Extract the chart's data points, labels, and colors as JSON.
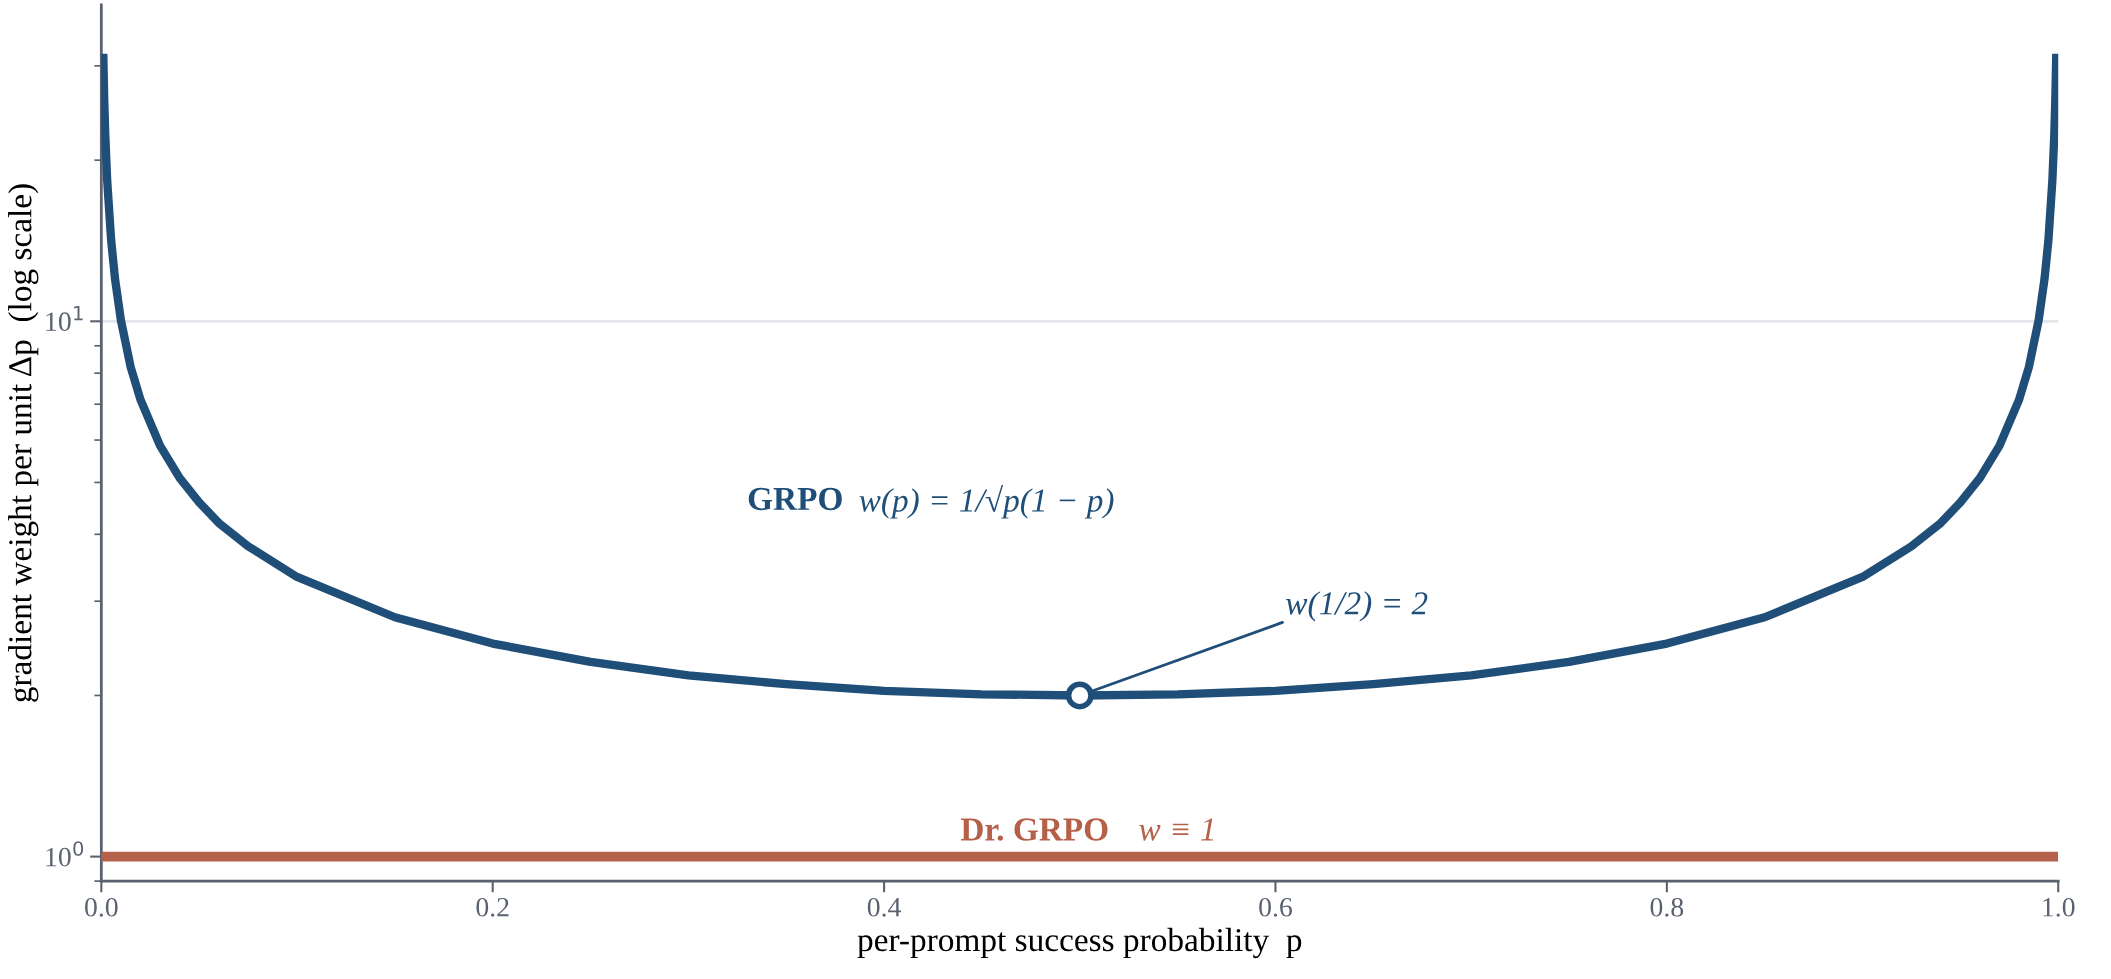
{
  "chart_data": {
    "type": "line",
    "xlabel": "per-prompt success probability  p",
    "ylabel": "gradient weight per unit Δp  (log scale)",
    "log": "y",
    "xlim": [
      0,
      1
    ],
    "ylim": [
      0.9,
      39
    ],
    "xticks": [
      {
        "value": 0,
        "label": "0.0"
      },
      0.2,
      0.4,
      0.6,
      0.8,
      {
        "value": 1,
        "label": "1.0"
      }
    ],
    "yticks": [
      {
        "value": 1,
        "label": "10$^{0}$"
      },
      {
        "value": 10,
        "label": "10$^{1}$"
      }
    ],
    "grid": "y",
    "legend": false,
    "line_style": "solid",
    "series": [
      {
        "name": "GRPO",
        "color": "#1f4e79",
        "x": [
          0.001,
          0.0015,
          0.002,
          0.003,
          0.005,
          0.007,
          0.01,
          0.015,
          0.02,
          0.03,
          0.04,
          0.05,
          0.06,
          0.075,
          0.1,
          0.15,
          0.2,
          0.25,
          0.3,
          0.35,
          0.4,
          0.45,
          0.5,
          0.55,
          0.6,
          0.65,
          0.7,
          0.75,
          0.8,
          0.85,
          0.9,
          0.925,
          0.94,
          0.95,
          0.96,
          0.97,
          0.98,
          0.985,
          0.99,
          0.993,
          0.995,
          0.997,
          0.998,
          0.9985,
          0.999
        ],
        "values": [
          31.6,
          25.8,
          22.4,
          18.3,
          14.2,
          12.0,
          10.05,
          8.21,
          7.14,
          5.86,
          5.1,
          4.59,
          4.2,
          3.8,
          3.33,
          2.8,
          2.5,
          2.31,
          2.18,
          2.1,
          2.04,
          2.01,
          2.0,
          2.01,
          2.04,
          2.1,
          2.18,
          2.31,
          2.5,
          2.8,
          3.33,
          3.8,
          4.2,
          4.59,
          5.1,
          5.86,
          7.14,
          8.21,
          10.05,
          12.0,
          14.2,
          18.3,
          22.4,
          25.8,
          31.6
        ]
      },
      {
        "name": "Dr. GRPO",
        "color": "#b5614a",
        "x": [
          0,
          1
        ],
        "values": [
          1,
          1
        ]
      },
      {
        "type": "scatter",
        "color": "#1f4e79",
        "marker": "circle",
        "x": [
          0.5
        ],
        "values": [
          2
        ]
      }
    ],
    "annotations": [
      "w(p) = 1/√p(1 − p)",
      "w ≡ 1",
      {
        "text": "w(1/2) = 2",
        "x": 0.5,
        "y": 2
      }
    ]
  }
}
